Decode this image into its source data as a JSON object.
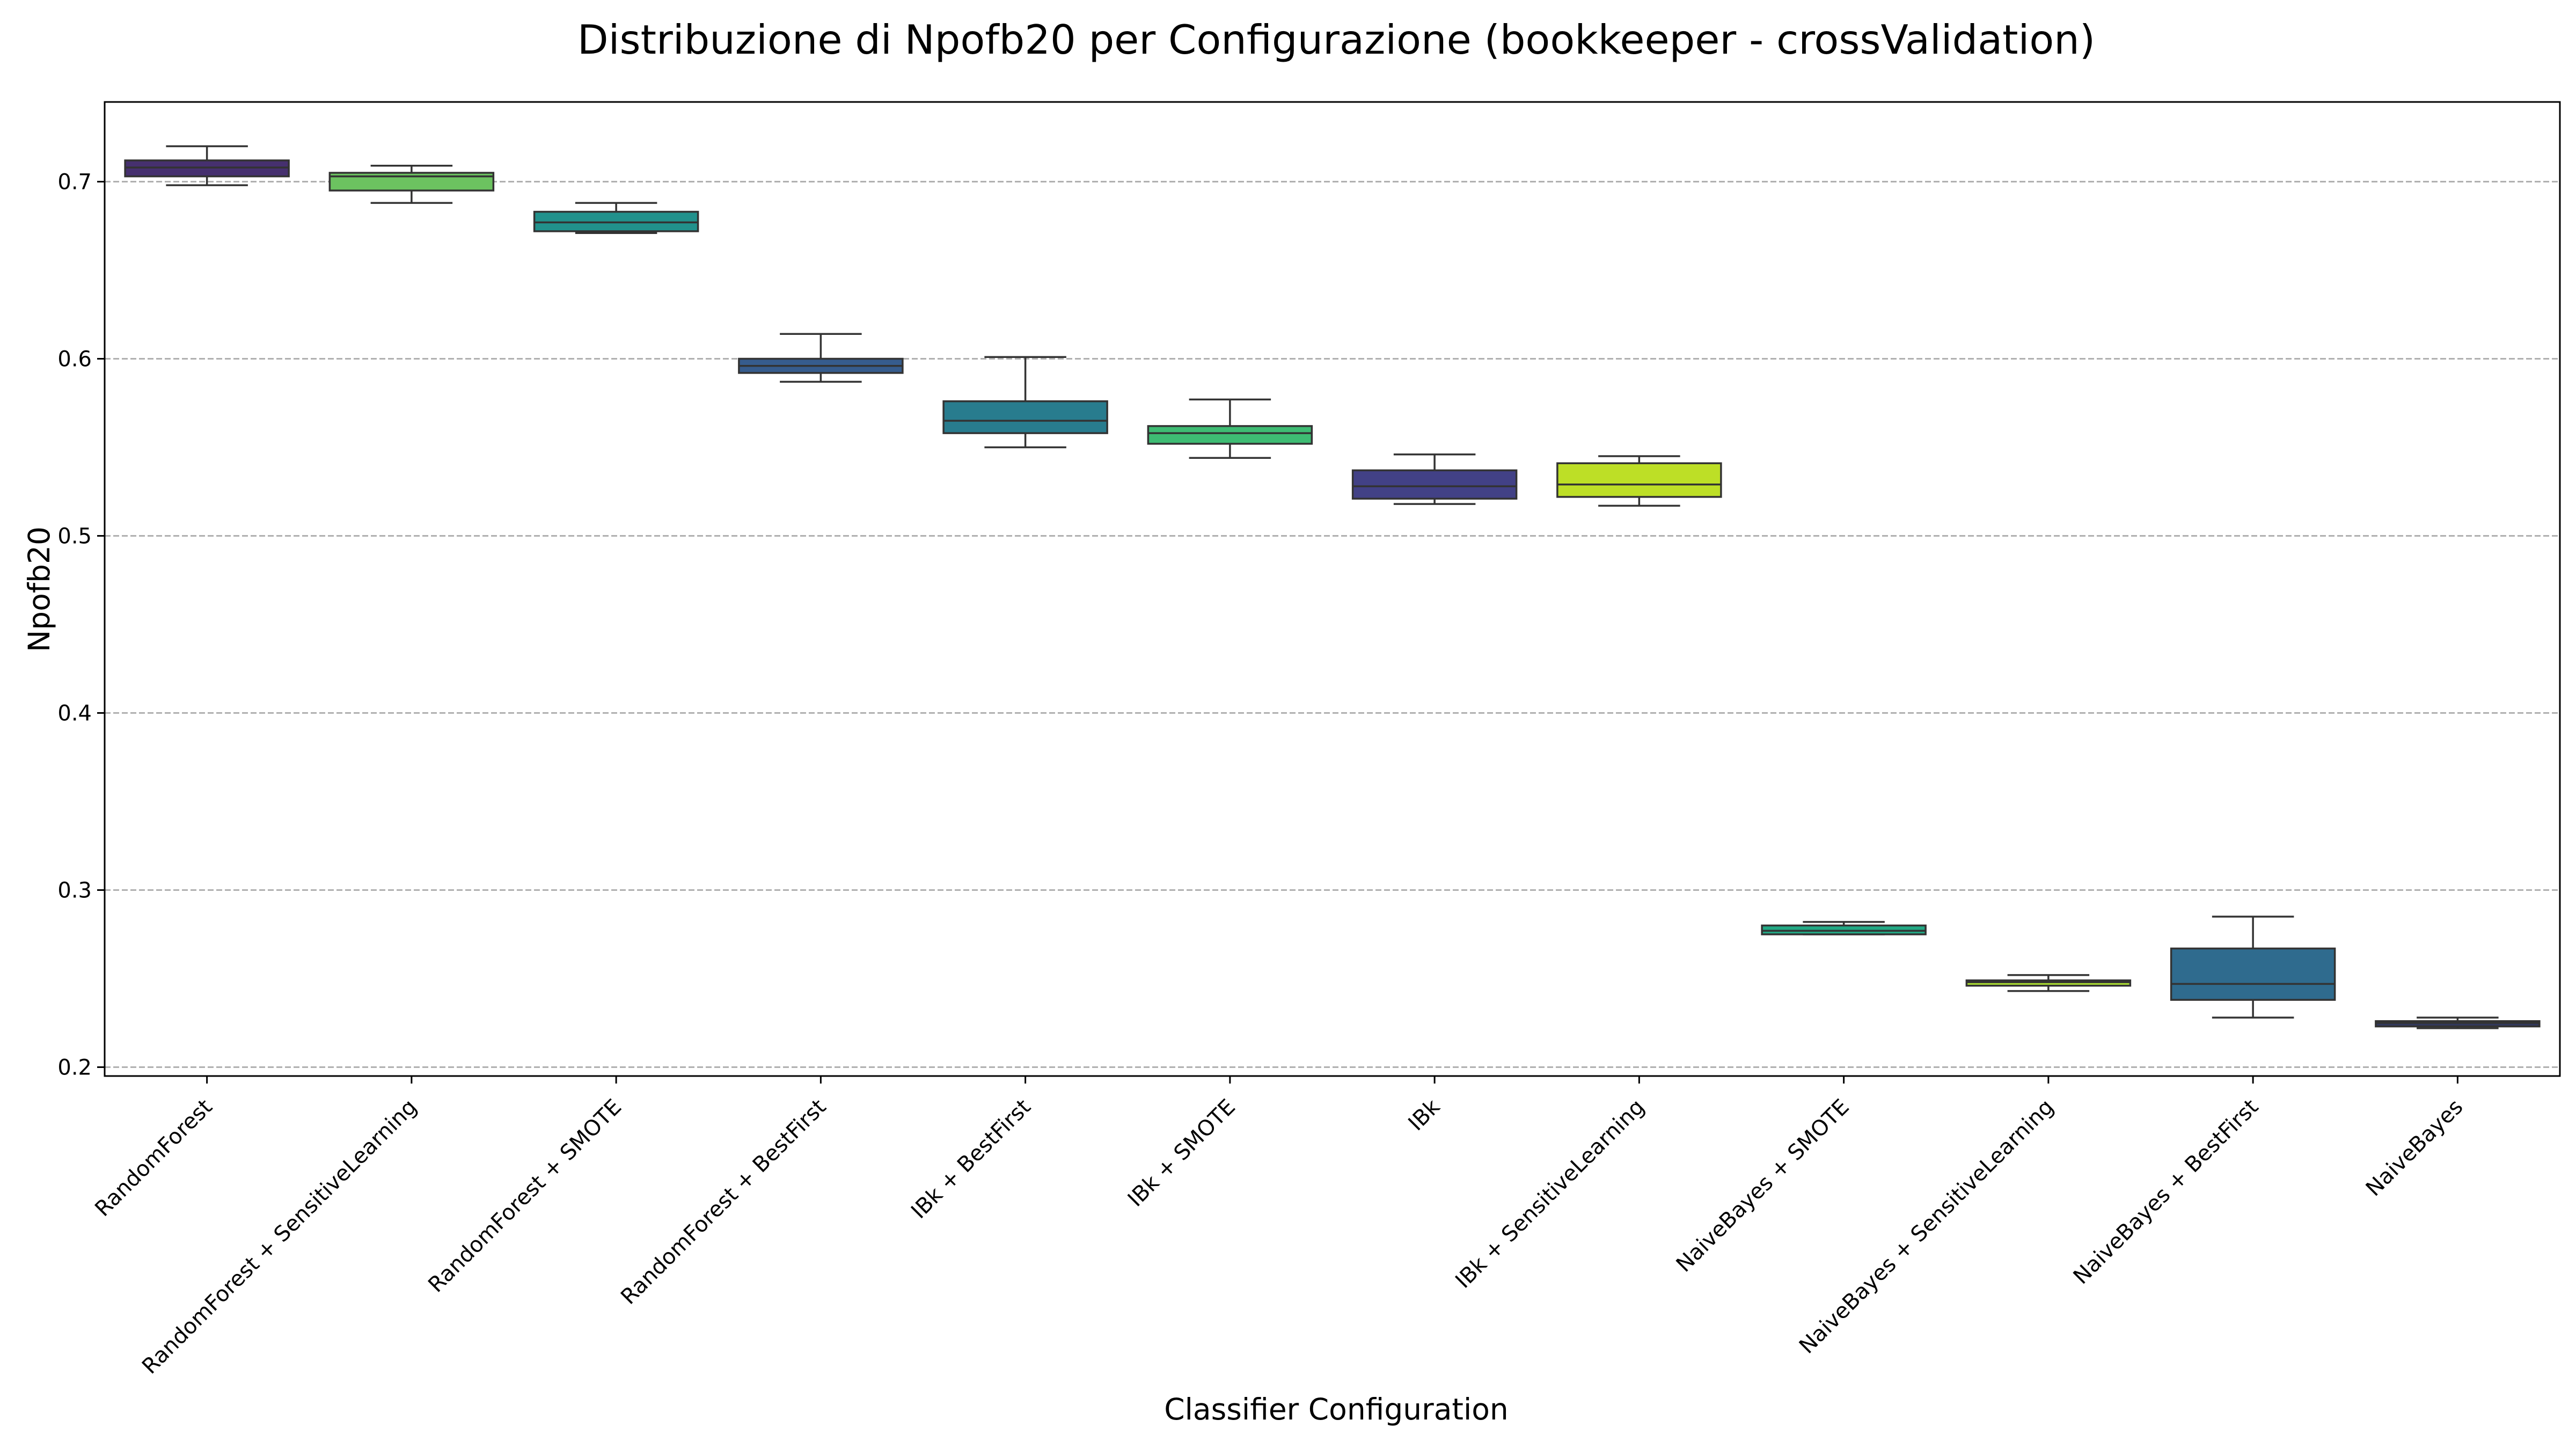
{
  "chart_data": {
    "type": "box",
    "title": "Distribuzione di Npofb20 per Configurazione (bookkeeper - crossValidation)",
    "xlabel": "Classifier Configuration",
    "ylabel": "Npofb20",
    "ylim": [
      0.195,
      0.745
    ],
    "yticks": [
      "0.2",
      "0.3",
      "0.4",
      "0.5",
      "0.6",
      "0.7"
    ],
    "grid": "y-dashed",
    "categories": [
      "RandomForest",
      "RandomForest + SensitiveLearning",
      "RandomForest + SMOTE",
      "RandomForest + BestFirst",
      "IBk + BestFirst",
      "IBk + SMOTE",
      "IBk",
      "IBk + SensitiveLearning",
      "NaiveBayes + SMOTE",
      "NaiveBayes + SensitiveLearning",
      "NaiveBayes + BestFirst",
      "NaiveBayes"
    ],
    "boxes": [
      {
        "min": 0.698,
        "q1": 0.703,
        "median": 0.708,
        "q3": 0.712,
        "max": 0.72,
        "color": "#46306f"
      },
      {
        "min": 0.688,
        "q1": 0.695,
        "median": 0.703,
        "q3": 0.705,
        "max": 0.709,
        "color": "#6cc260"
      },
      {
        "min": 0.671,
        "q1": 0.672,
        "median": 0.677,
        "q3": 0.683,
        "max": 0.688,
        "color": "#21918c"
      },
      {
        "min": 0.587,
        "q1": 0.592,
        "median": 0.596,
        "q3": 0.6,
        "max": 0.614,
        "color": "#365c8d"
      },
      {
        "min": 0.55,
        "q1": 0.558,
        "median": 0.565,
        "q3": 0.576,
        "max": 0.601,
        "color": "#287c8e"
      },
      {
        "min": 0.544,
        "q1": 0.552,
        "median": 0.558,
        "q3": 0.562,
        "max": 0.577,
        "color": "#3ebc73"
      },
      {
        "min": 0.518,
        "q1": 0.521,
        "median": 0.528,
        "q3": 0.537,
        "max": 0.546,
        "color": "#424186"
      },
      {
        "min": 0.517,
        "q1": 0.522,
        "median": 0.529,
        "q3": 0.541,
        "max": 0.545,
        "color": "#bddf26"
      },
      {
        "min": 0.275,
        "q1": 0.275,
        "median": 0.277,
        "q3": 0.28,
        "max": 0.282,
        "color": "#22a884"
      },
      {
        "min": 0.243,
        "q1": 0.246,
        "median": 0.248,
        "q3": 0.249,
        "max": 0.252,
        "color": "#aadc32"
      },
      {
        "min": 0.228,
        "q1": 0.238,
        "median": 0.247,
        "q3": 0.267,
        "max": 0.285,
        "color": "#2f6b8e"
      },
      {
        "min": 0.222,
        "q1": 0.223,
        "median": 0.225,
        "q3": 0.226,
        "max": 0.228,
        "color": "#31385d"
      }
    ]
  }
}
